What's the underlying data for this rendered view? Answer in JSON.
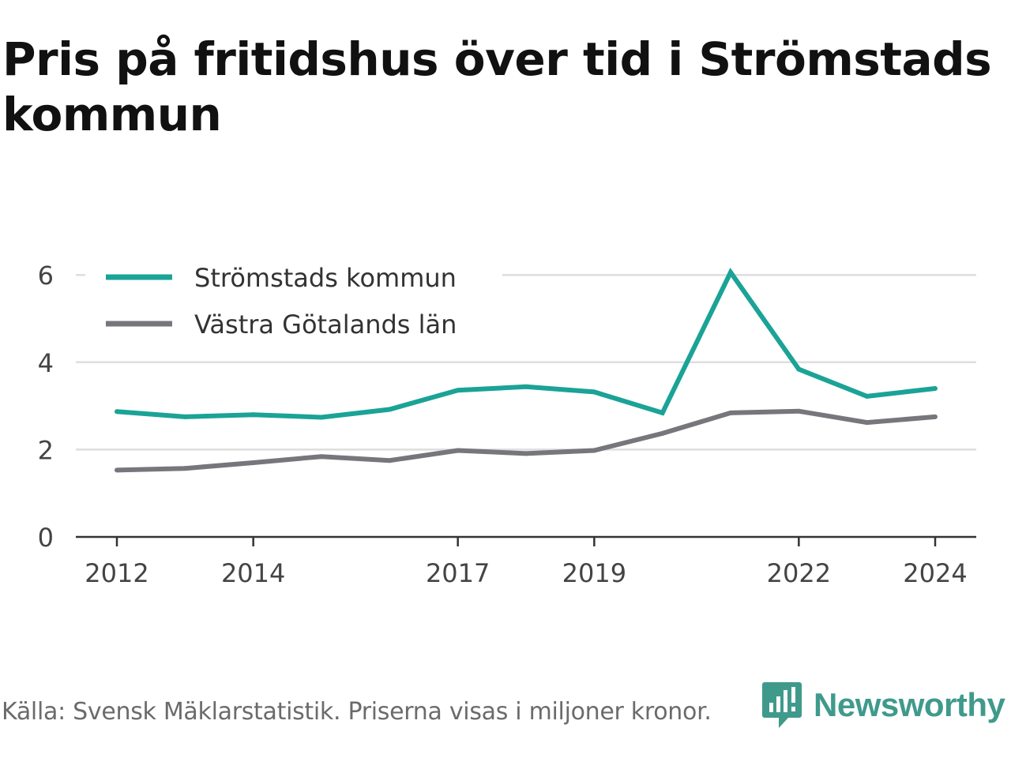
{
  "title": "Pris på fritidshus över tid i Strömstads kommun",
  "footer": {
    "source": "Källa: Svensk Mäklarstatistik. Priserna visas i miljoner kronor.",
    "brand_name": "Newsworthy",
    "brand_icon": "newsworthy-logo-icon",
    "brand_color": "#3f9a8c"
  },
  "chart_data": {
    "type": "line",
    "title": "Pris på fritidshus över tid i Strömstads kommun",
    "xlabel": "",
    "ylabel": "",
    "x": [
      2012,
      2013,
      2014,
      2015,
      2016,
      2017,
      2018,
      2019,
      2020,
      2021,
      2022,
      2023,
      2024
    ],
    "x_ticks": [
      "2012",
      "2014",
      "2017",
      "2019",
      "2022",
      "2024"
    ],
    "y_ticks": [
      0,
      2,
      4,
      6
    ],
    "ylim": [
      0,
      6.2
    ],
    "xlim": [
      2011.4,
      2024.6
    ],
    "grid": true,
    "legend_position": "top-left",
    "series": [
      {
        "name": "Strömstads kommun",
        "color": "#1aa396",
        "values": [
          2.87,
          2.75,
          2.8,
          2.74,
          2.92,
          3.36,
          3.44,
          3.32,
          2.84,
          6.06,
          3.84,
          3.22,
          3.4
        ]
      },
      {
        "name": "Västra Götalands län",
        "color": "#76767c",
        "values": [
          1.53,
          1.57,
          1.7,
          1.84,
          1.75,
          1.98,
          1.91,
          1.98,
          2.37,
          2.84,
          2.88,
          2.62,
          2.75
        ]
      }
    ]
  }
}
